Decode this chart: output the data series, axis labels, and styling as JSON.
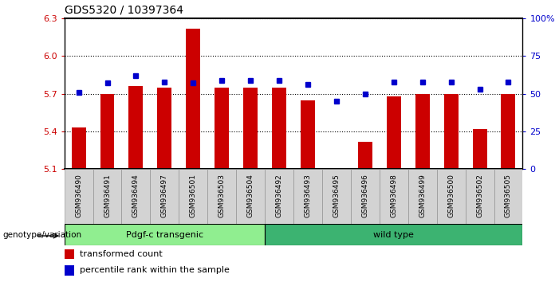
{
  "title": "GDS5320 / 10397364",
  "samples": [
    "GSM936490",
    "GSM936491",
    "GSM936494",
    "GSM936497",
    "GSM936501",
    "GSM936503",
    "GSM936504",
    "GSM936492",
    "GSM936493",
    "GSM936495",
    "GSM936496",
    "GSM936498",
    "GSM936499",
    "GSM936500",
    "GSM936502",
    "GSM936505"
  ],
  "transformed_count": [
    5.43,
    5.7,
    5.76,
    5.75,
    6.22,
    5.75,
    5.75,
    5.75,
    5.65,
    5.1,
    5.32,
    5.68,
    5.7,
    5.7,
    5.42,
    5.7
  ],
  "percentile_rank": [
    51,
    57,
    62,
    58,
    57,
    59,
    59,
    59,
    56,
    45,
    50,
    58,
    58,
    58,
    53,
    58
  ],
  "transgenic_count": 7,
  "wild_count": 9,
  "group_label_transgenic": "Pdgf-c transgenic",
  "group_label_wild": "wild type",
  "group_color_transgenic": "#90EE90",
  "group_color_wild": "#3CB371",
  "bar_color": "#CC0000",
  "dot_color": "#0000CC",
  "ylim_left": [
    5.1,
    6.3
  ],
  "ylim_right": [
    0,
    100
  ],
  "yticks_left": [
    5.1,
    5.4,
    5.7,
    6.0,
    6.3
  ],
  "yticks_right": [
    0,
    25,
    50,
    75,
    100
  ],
  "bg_color": "#FFFFFF",
  "tick_label_color_left": "#CC0000",
  "tick_label_color_right": "#0000CC",
  "xlabel": "genotype/variation",
  "legend_items": [
    "transformed count",
    "percentile rank within the sample"
  ],
  "bar_width": 0.5
}
